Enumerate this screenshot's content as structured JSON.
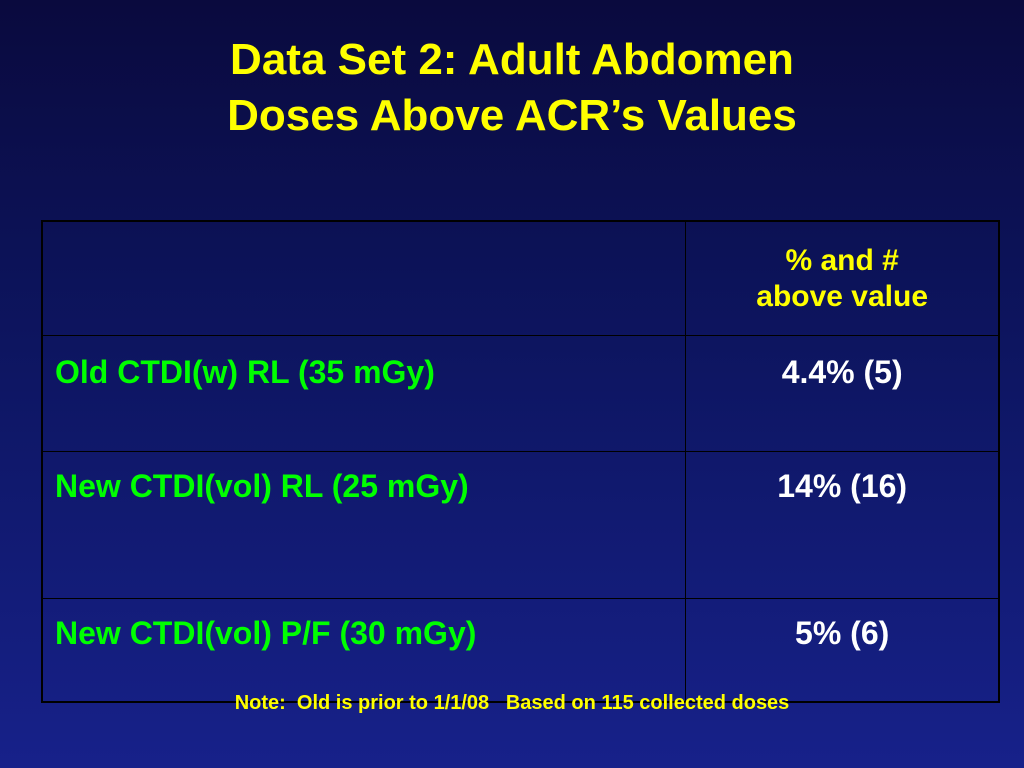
{
  "title": {
    "line1": "Data Set 2: Adult Abdomen",
    "line2": "Doses Above ACR’s Values"
  },
  "table": {
    "header": {
      "label": "",
      "value_line1": "% and #",
      "value_line2": "above value"
    },
    "rows": [
      {
        "label": "Old CTDI(w) RL (35 mGy)",
        "value": "4.4% (5)"
      },
      {
        "label": "New  CTDI(vol) RL (25 mGy)",
        "value": "14% (16)"
      },
      {
        "label": "New CTDI(vol) P/F  (30 mGy)",
        "value": "5% (6)"
      }
    ]
  },
  "note": "Note:  Old is prior to 1/1/08   Based on 115 collected doses",
  "colors": {
    "title": "#ffff00",
    "row_label": "#00ff00",
    "value": "#ffffff",
    "background": "#0d1560"
  }
}
